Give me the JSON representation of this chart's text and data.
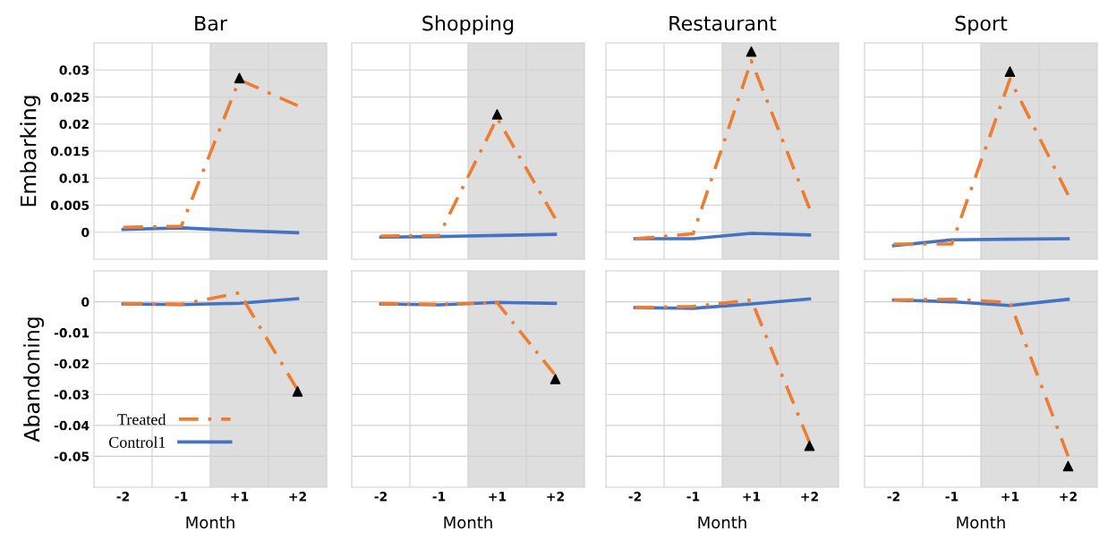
{
  "chart_data": [
    {
      "type": "line",
      "title": "Bar",
      "ylabel": "Embarking",
      "categories": [
        "-2",
        "-1",
        "+1",
        "+2"
      ],
      "ylim": [
        -0.005,
        0.035
      ],
      "yticks": [
        0,
        0.005,
        0.01,
        0.015,
        0.02,
        0.025,
        0.03
      ],
      "grid": true,
      "tick_labels": "y",
      "bands": [
        {
          "axis": "x",
          "from": "+1",
          "to": "+2",
          "color": "#dedede"
        }
      ],
      "series": [
        {
          "color": "#4472c4",
          "line_style": "solid",
          "values": [
            0.0005,
            0.0008,
            0.0003,
            -0.0001
          ]
        },
        {
          "color": "#ed7d31",
          "line_style": "dashed",
          "values": [
            0.0009,
            0.0011,
            0.0282,
            0.0234
          ]
        },
        {
          "type": "scatter",
          "marker": "triangle",
          "color": "#000000",
          "values": [
            null,
            null,
            0.0285,
            null
          ]
        }
      ]
    },
    {
      "type": "line",
      "title": "Shopping",
      "categories": [
        "-2",
        "-1",
        "+1",
        "+2"
      ],
      "ylim": [
        -0.005,
        0.035
      ],
      "yticks": [
        0,
        0.005,
        0.01,
        0.015,
        0.02,
        0.025,
        0.03
      ],
      "grid": true,
      "tick_labels": false,
      "bands": [
        {
          "axis": "x",
          "from": "+1",
          "to": "+2",
          "color": "#dedede"
        }
      ],
      "series": [
        {
          "color": "#4472c4",
          "line_style": "solid",
          "values": [
            -0.0009,
            -0.0008,
            -0.0006,
            -0.0004
          ]
        },
        {
          "color": "#ed7d31",
          "line_style": "dashed",
          "values": [
            -0.0007,
            -0.0006,
            0.0211,
            0.0025
          ]
        },
        {
          "type": "scatter",
          "marker": "triangle",
          "color": "#000000",
          "values": [
            null,
            null,
            0.0218,
            null
          ]
        }
      ]
    },
    {
      "type": "line",
      "title": "Restaurant",
      "categories": [
        "-2",
        "-1",
        "+1",
        "+2"
      ],
      "ylim": [
        -0.005,
        0.035
      ],
      "yticks": [
        0,
        0.005,
        0.01,
        0.015,
        0.02,
        0.025,
        0.03
      ],
      "grid": true,
      "tick_labels": false,
      "bands": [
        {
          "axis": "x",
          "from": "+1",
          "to": "+2",
          "color": "#dedede"
        }
      ],
      "series": [
        {
          "color": "#4472c4",
          "line_style": "solid",
          "values": [
            -0.0012,
            -0.0012,
            -0.0002,
            -0.0005
          ]
        },
        {
          "color": "#ed7d31",
          "line_style": "dashed",
          "values": [
            -0.0012,
            -0.0003,
            0.0317,
            0.0044
          ]
        },
        {
          "type": "scatter",
          "marker": "triangle",
          "color": "#000000",
          "values": [
            null,
            null,
            0.0334,
            null
          ]
        }
      ]
    },
    {
      "type": "line",
      "title": "Sport",
      "categories": [
        "-2",
        "-1",
        "+1",
        "+2"
      ],
      "ylim": [
        -0.005,
        0.035
      ],
      "yticks": [
        0,
        0.005,
        0.01,
        0.015,
        0.02,
        0.025,
        0.03
      ],
      "grid": true,
      "tick_labels": false,
      "bands": [
        {
          "axis": "x",
          "from": "+1",
          "to": "+2",
          "color": "#dedede"
        }
      ],
      "series": [
        {
          "color": "#4472c4",
          "line_style": "solid",
          "values": [
            -0.0025,
            -0.0014,
            -0.0013,
            -0.0012
          ]
        },
        {
          "color": "#ed7d31",
          "line_style": "dashed",
          "values": [
            -0.0022,
            -0.0022,
            0.0283,
            0.0069
          ]
        },
        {
          "type": "scatter",
          "marker": "triangle",
          "color": "#000000",
          "values": [
            null,
            null,
            0.0297,
            null
          ]
        }
      ]
    },
    {
      "type": "line",
      "ylabel": "Abandoning",
      "xlabel": "Month",
      "categories": [
        "-2",
        "-1",
        "+1",
        "+2"
      ],
      "ylim": [
        -0.06,
        0.01
      ],
      "yticks": [
        0,
        -0.01,
        -0.02,
        -0.03,
        -0.04,
        -0.05
      ],
      "grid": true,
      "legend": "bottom left",
      "bands": [
        {
          "axis": "x",
          "from": "+1",
          "to": "+2",
          "color": "#dedede"
        }
      ],
      "series": [
        {
          "name": "Control1",
          "color": "#4472c4",
          "line_style": "solid",
          "values": [
            -0.0007,
            -0.0009,
            -0.0005,
            0.001
          ]
        },
        {
          "name": "Treated",
          "color": "#ed7d31",
          "line_style": "dashed",
          "values": [
            -0.0006,
            -0.0008,
            0.0029,
            -0.0285
          ]
        },
        {
          "type": "scatter",
          "marker": "triangle",
          "color": "#000000",
          "values": [
            null,
            null,
            null,
            -0.029
          ]
        }
      ]
    },
    {
      "type": "line",
      "xlabel": "Month",
      "categories": [
        "-2",
        "-1",
        "+1",
        "+2"
      ],
      "ylim": [
        -0.06,
        0.01
      ],
      "yticks": [
        0,
        -0.01,
        -0.02,
        -0.03,
        -0.04,
        -0.05
      ],
      "grid": true,
      "tick_labels": "x",
      "bands": [
        {
          "axis": "x",
          "from": "+1",
          "to": "+2",
          "color": "#dedede"
        }
      ],
      "series": [
        {
          "color": "#4472c4",
          "line_style": "solid",
          "values": [
            -0.0007,
            -0.001,
            -0.0002,
            -0.0005
          ]
        },
        {
          "color": "#ed7d31",
          "line_style": "dashed",
          "values": [
            -0.0006,
            -0.0008,
            -0.0003,
            -0.0238
          ]
        },
        {
          "type": "scatter",
          "marker": "triangle",
          "color": "#000000",
          "values": [
            null,
            null,
            null,
            -0.025
          ]
        }
      ]
    },
    {
      "type": "line",
      "xlabel": "Month",
      "categories": [
        "-2",
        "-1",
        "+1",
        "+2"
      ],
      "ylim": [
        -0.06,
        0.01
      ],
      "yticks": [
        0,
        -0.01,
        -0.02,
        -0.03,
        -0.04,
        -0.05
      ],
      "grid": true,
      "tick_labels": "x",
      "bands": [
        {
          "axis": "x",
          "from": "+1",
          "to": "+2",
          "color": "#dedede"
        }
      ],
      "series": [
        {
          "color": "#4472c4",
          "line_style": "solid",
          "values": [
            -0.0019,
            -0.0021,
            -0.0007,
            0.0009
          ]
        },
        {
          "color": "#ed7d31",
          "line_style": "dashed",
          "values": [
            -0.0019,
            -0.0015,
            0.0006,
            -0.0455
          ]
        },
        {
          "type": "scatter",
          "marker": "triangle",
          "color": "#000000",
          "values": [
            null,
            null,
            null,
            -0.0466
          ]
        }
      ]
    },
    {
      "type": "line",
      "xlabel": "Month",
      "categories": [
        "-2",
        "-1",
        "+1",
        "+2"
      ],
      "ylim": [
        -0.06,
        0.01
      ],
      "yticks": [
        0,
        -0.01,
        -0.02,
        -0.03,
        -0.04,
        -0.05
      ],
      "grid": true,
      "tick_labels": "x",
      "bands": [
        {
          "axis": "x",
          "from": "+1",
          "to": "+2",
          "color": "#dedede"
        }
      ],
      "series": [
        {
          "color": "#4472c4",
          "line_style": "solid",
          "values": [
            0.0006,
            0,
            -0.0012,
            0.0008
          ]
        },
        {
          "color": "#ed7d31",
          "line_style": "dashed",
          "values": [
            0.0006,
            0.0008,
            -0.0002,
            -0.05
          ]
        },
        {
          "type": "scatter",
          "marker": "triangle",
          "color": "#000000",
          "values": [
            null,
            null,
            null,
            -0.0532
          ]
        }
      ]
    }
  ]
}
